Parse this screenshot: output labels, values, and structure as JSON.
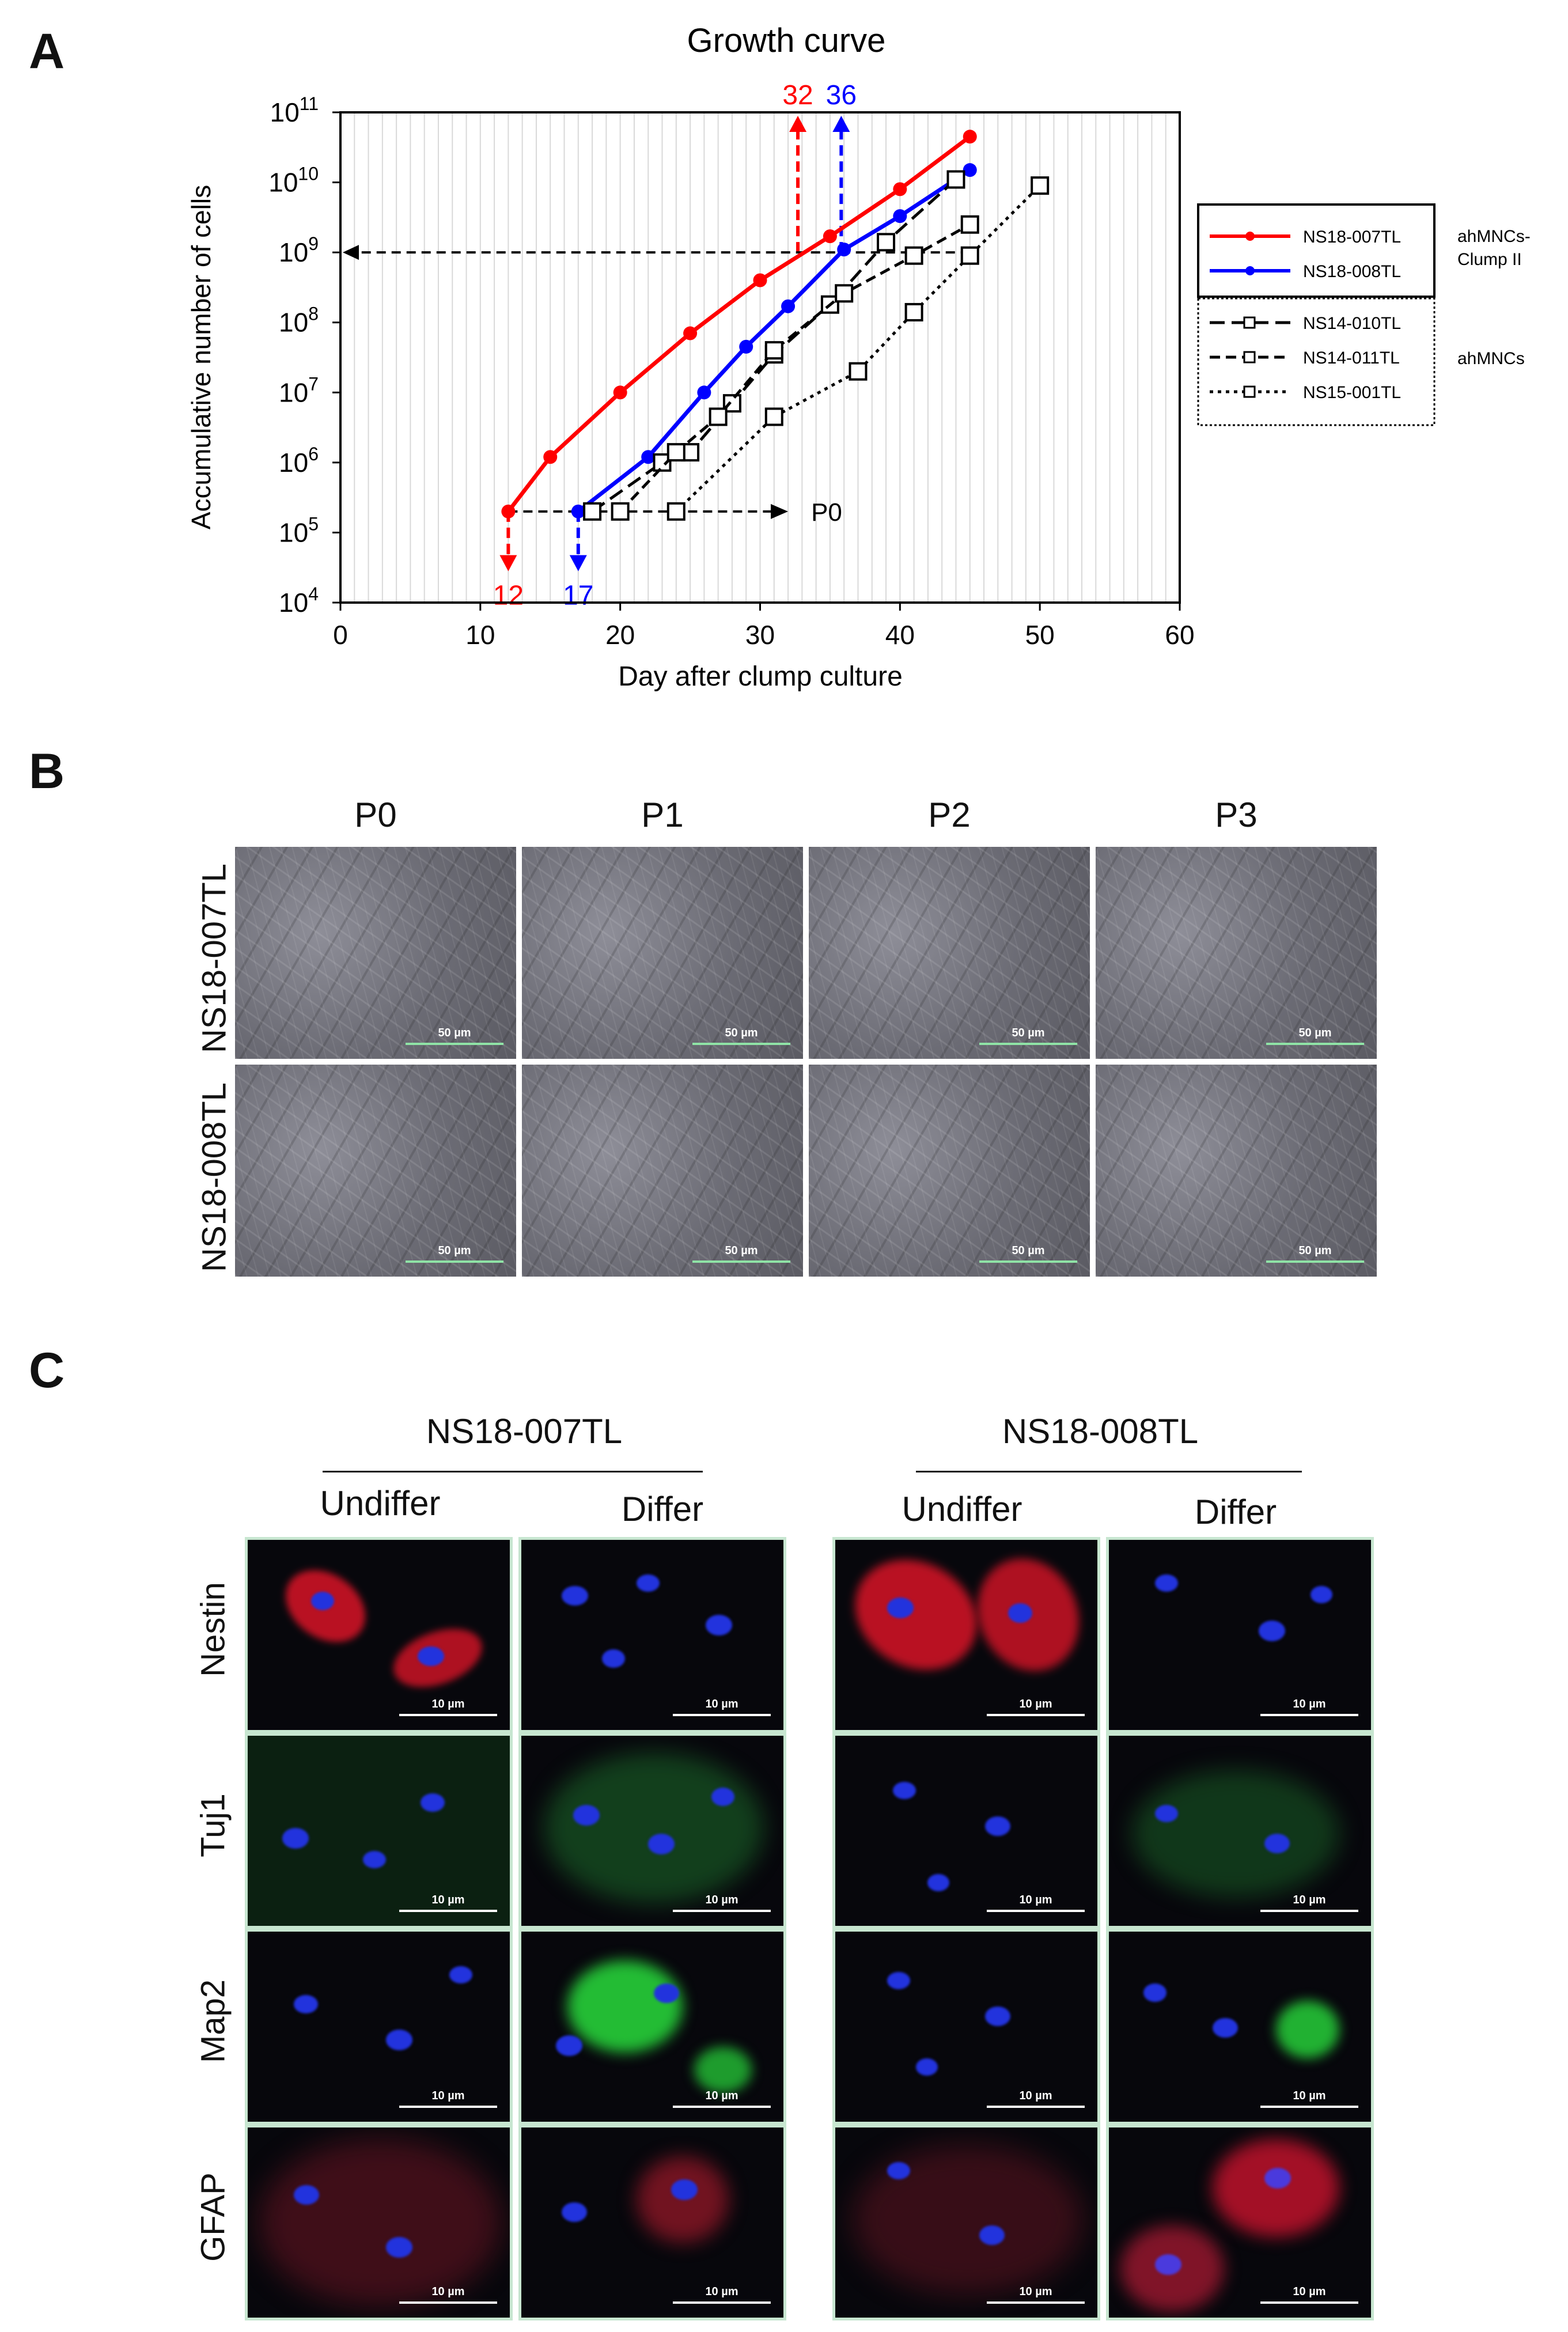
{
  "panel_labels": {
    "a": "A",
    "b": "B",
    "c": "C"
  },
  "chart_data": {
    "type": "line",
    "title": "Growth curve",
    "xlabel": "Day after clump culture",
    "ylabel": "Accumulative number of cells",
    "xlim": [
      0,
      60
    ],
    "x_ticks": [
      "0",
      "10",
      "20",
      "30",
      "40",
      "50",
      "60"
    ],
    "y_scale": "log",
    "ylim": [
      10000,
      100000000000
    ],
    "y_tick_exponents": [
      "4",
      "5",
      "6",
      "7",
      "8",
      "9",
      "10",
      "11"
    ],
    "y_tick_base": "10",
    "grid": "vertical",
    "series": [
      {
        "name": "NS18-007TL",
        "color": "#ff0000",
        "style": "solid",
        "marker": "circle",
        "x": [
          12,
          15,
          20,
          25,
          30,
          35,
          40,
          45
        ],
        "y": [
          200000,
          1200000,
          10000000,
          70000000,
          400000000,
          1700000000,
          8000000000,
          45000000000
        ]
      },
      {
        "name": "NS18-008TL",
        "color": "#0000ff",
        "style": "solid",
        "marker": "circle",
        "x": [
          17,
          22,
          26,
          29,
          32,
          36,
          40,
          45
        ],
        "y": [
          200000,
          1200000,
          10000000,
          45000000,
          170000000,
          1100000000,
          3300000000,
          15000000000
        ]
      },
      {
        "name": "NS14-010TL",
        "color": "#000000",
        "style": "dashed-long",
        "marker": "square",
        "x": [
          18,
          23,
          25,
          28,
          31,
          35,
          39,
          44
        ],
        "y": [
          200000,
          1000000,
          1400000,
          7000000,
          35000000,
          180000000,
          1400000000,
          11000000000
        ]
      },
      {
        "name": "NS14-011TL",
        "color": "#000000",
        "style": "dashed",
        "marker": "square",
        "x": [
          20,
          24,
          27,
          31,
          36,
          41,
          45
        ],
        "y": [
          200000,
          1400000,
          4500000,
          40000000,
          260000000,
          900000000,
          2500000000
        ]
      },
      {
        "name": "NS15-001TL",
        "color": "#000000",
        "style": "dotted",
        "marker": "square",
        "x": [
          24,
          31,
          37,
          41,
          45,
          50
        ],
        "y": [
          200000,
          4500000,
          20000000,
          140000000,
          900000000,
          9000000000
        ]
      }
    ],
    "annotations": {
      "red_start": {
        "text": "12",
        "color": "#ff0000",
        "x": 12,
        "y_from": 200000,
        "y_to": 25000
      },
      "blue_start": {
        "text": "17",
        "color": "#0000ff",
        "x": 17,
        "y_from": 200000,
        "y_to": 25000
      },
      "red_1e9": {
        "text": "32",
        "color": "#ff0000",
        "x": 32.7,
        "y_from": 1000000000,
        "y_to": 100000000000
      },
      "blue_1e9": {
        "text": "36",
        "color": "#0000ff",
        "x": 35.8,
        "y_from": 1000000000,
        "y_to": 100000000000
      },
      "p0": {
        "text": "P0",
        "x_from": 12,
        "x_to": 32,
        "y": 200000
      },
      "level_1e9": {
        "x_from": 45,
        "x_to": 0,
        "y": 1000000000
      }
    },
    "legend": {
      "placement": "right",
      "group1_label_line1": "ahMNCs-",
      "group1_label_line2": "Clump II",
      "group2_label": "ahMNCs"
    }
  },
  "panel_b": {
    "columns": [
      "P0",
      "P1",
      "P2",
      "P3"
    ],
    "rows": [
      "NS18-007TL",
      "NS18-008TL"
    ],
    "scale": "50 µm"
  },
  "panel_c": {
    "groups": [
      "NS18-007TL",
      "NS18-008TL"
    ],
    "conditions": [
      "Undiffer",
      "Differ"
    ],
    "markers": [
      "Nestin",
      "Tuj1",
      "Map2",
      "GFAP"
    ],
    "scale": "10 µm"
  }
}
